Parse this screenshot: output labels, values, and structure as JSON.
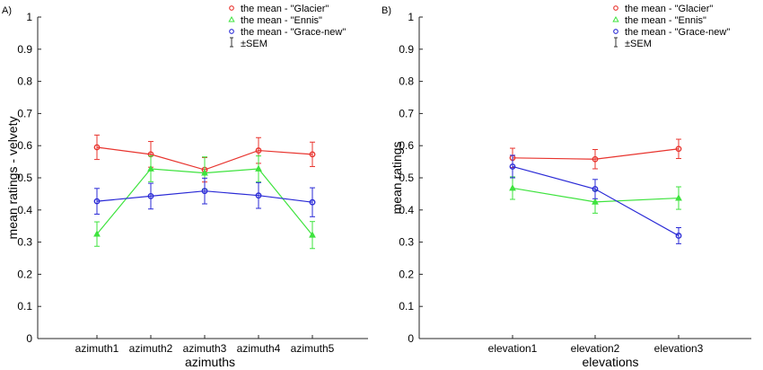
{
  "legend_labels": {
    "glacier": "the mean - \"Glacier\"",
    "ennis": "the mean - \"Ennis\"",
    "grace": "the mean - \"Grace-new\"",
    "sem": "±SEM"
  },
  "colors": {
    "glacier": "#e8342e",
    "ennis": "#3ee33e",
    "grace": "#2a2ad6",
    "sem": "#333333"
  },
  "chart_data": [
    {
      "type": "line",
      "panel_label": "A)",
      "title": "",
      "xlabel": "azimuths",
      "ylabel": "mean ratings - velvety",
      "categories": [
        "azimuth1",
        "azimuth2",
        "azimuth3",
        "azimuth4",
        "azimuth5"
      ],
      "ylim": [
        0,
        1
      ],
      "yticks": [
        0,
        0.1,
        0.2,
        0.3,
        0.4,
        0.5,
        0.6,
        0.7,
        0.8,
        0.9,
        1
      ],
      "grid": false,
      "legend_position": "top-right",
      "series": [
        {
          "name": "the mean - \"Glacier\"",
          "color": "glacier",
          "marker": "circle",
          "values": [
            0.595,
            0.573,
            0.525,
            0.585,
            0.573
          ],
          "sem": [
            0.038,
            0.04,
            0.038,
            0.04,
            0.038
          ]
        },
        {
          "name": "the mean - \"Ennis\"",
          "color": "ennis",
          "marker": "triangle",
          "values": [
            0.325,
            0.528,
            0.515,
            0.528,
            0.322
          ],
          "sem": [
            0.038,
            0.04,
            0.05,
            0.04,
            0.042
          ]
        },
        {
          "name": "the mean - \"Grace-new\"",
          "color": "grace",
          "marker": "circle",
          "values": [
            0.427,
            0.443,
            0.459,
            0.445,
            0.424
          ],
          "sem": [
            0.04,
            0.04,
            0.04,
            0.04,
            0.045
          ]
        }
      ]
    },
    {
      "type": "line",
      "panel_label": "B)",
      "title": "",
      "xlabel": "elevations",
      "ylabel": "mean ratings",
      "categories": [
        "elevation1",
        "elevation2",
        "elevation3"
      ],
      "ylim": [
        0,
        1
      ],
      "yticks": [
        0,
        0.1,
        0.2,
        0.3,
        0.4,
        0.5,
        0.6,
        0.7,
        0.8,
        0.9,
        1
      ],
      "grid": false,
      "legend_position": "top-right",
      "series": [
        {
          "name": "the mean - \"Glacier\"",
          "color": "glacier",
          "marker": "circle",
          "values": [
            0.562,
            0.558,
            0.59
          ],
          "sem": [
            0.03,
            0.03,
            0.03
          ]
        },
        {
          "name": "the mean - \"Ennis\"",
          "color": "ennis",
          "marker": "triangle",
          "values": [
            0.468,
            0.425,
            0.437
          ],
          "sem": [
            0.035,
            0.035,
            0.035
          ]
        },
        {
          "name": "the mean - \"Grace-new\"",
          "color": "grace",
          "marker": "circle",
          "values": [
            0.535,
            0.465,
            0.32
          ],
          "sem": [
            0.035,
            0.03,
            0.025
          ]
        }
      ]
    }
  ]
}
